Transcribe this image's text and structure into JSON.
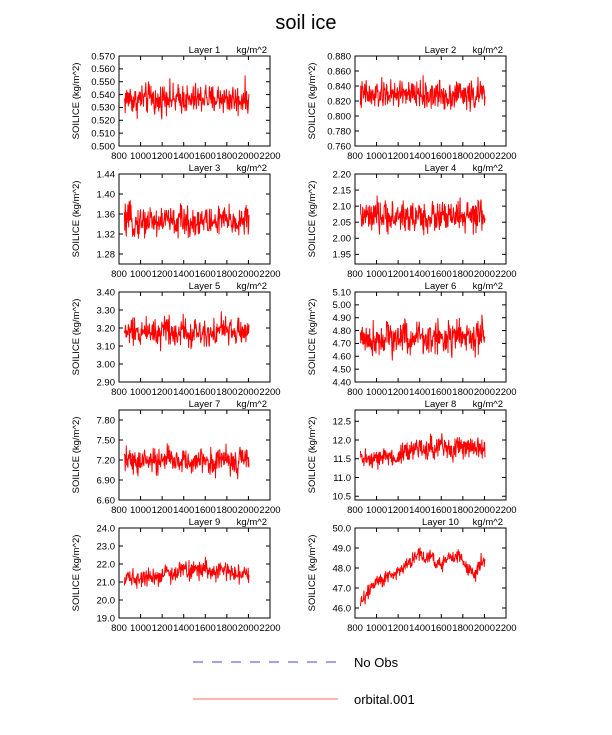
{
  "figure": {
    "title": "soil ice",
    "units_label": "kg/m^2",
    "legend": [
      {
        "label": "No Obs",
        "color": "#6b6bd6",
        "style": "dashed"
      },
      {
        "label": "orbital.001",
        "color": "#ff9c9c",
        "style": "solid"
      }
    ],
    "series_color": "#ff0000"
  },
  "chart_data": [
    {
      "type": "line",
      "title": "Layer 1",
      "ylabel": "SOILICE  (kg/m^2)",
      "units": "kg/m^2",
      "xlim": [
        800,
        2200
      ],
      "xticks": [
        "800",
        "1000",
        "1200",
        "1400",
        "1600",
        "1800",
        "2000",
        "2200"
      ],
      "ylim": [
        0.5,
        0.57
      ],
      "yticks": [
        "0.500",
        "0.510",
        "0.520",
        "0.530",
        "0.540",
        "0.550",
        "0.560",
        "0.570"
      ],
      "series": [
        {
          "x_range": [
            850,
            2005
          ],
          "mean": 0.536,
          "amplitude": 0.011,
          "trend": 0.0,
          "approx_values": [
            0.535,
            0.538,
            0.534,
            0.537,
            0.536,
            0.539,
            0.533,
            0.537,
            0.54,
            0.535,
            0.536,
            0.538,
            0.534,
            0.537,
            0.536,
            0.539,
            0.535,
            0.537,
            0.538,
            0.536,
            0.537,
            0.535,
            0.538,
            0.536
          ]
        }
      ]
    },
    {
      "type": "line",
      "title": "Layer 2",
      "ylabel": "SOILICE  (kg/m^2)",
      "units": "kg/m^2",
      "xlim": [
        800,
        2200
      ],
      "xticks": [
        "800",
        "1000",
        "1200",
        "1400",
        "1600",
        "1800",
        "2000",
        "2200"
      ],
      "ylim": [
        0.76,
        0.88
      ],
      "yticks": [
        "0.760",
        "0.780",
        "0.800",
        "0.820",
        "0.840",
        "0.860",
        "0.880"
      ],
      "series": [
        {
          "x_range": [
            850,
            2005
          ],
          "mean": 0.828,
          "amplitude": 0.018,
          "trend": 0.0,
          "approx_values": [
            0.826,
            0.83,
            0.824,
            0.829,
            0.827,
            0.832,
            0.825,
            0.83,
            0.833,
            0.826,
            0.828,
            0.831,
            0.825,
            0.829,
            0.827,
            0.83,
            0.826,
            0.829,
            0.831,
            0.828,
            0.829,
            0.826,
            0.83,
            0.828
          ]
        }
      ]
    },
    {
      "type": "line",
      "title": "Layer 3",
      "ylabel": "SOILICE  (kg/m^2)",
      "units": "kg/m^2",
      "xlim": [
        800,
        2200
      ],
      "xticks": [
        "800",
        "1000",
        "1200",
        "1400",
        "1600",
        "1800",
        "2000",
        "2200"
      ],
      "ylim": [
        1.26,
        1.44
      ],
      "yticks": [
        "1.28",
        "1.32",
        "1.36",
        "1.40",
        "1.44"
      ],
      "series": [
        {
          "x_range": [
            850,
            2005
          ],
          "mean": 1.345,
          "amplitude": 0.028,
          "trend": 0.0,
          "approx_values": [
            1.343,
            1.348,
            1.34,
            1.346,
            1.344,
            1.35,
            1.341,
            1.347,
            1.351,
            1.342,
            1.345,
            1.349,
            1.341,
            1.346,
            1.344,
            1.348,
            1.342,
            1.346,
            1.349,
            1.345,
            1.346,
            1.343,
            1.348,
            1.345
          ]
        }
      ]
    },
    {
      "type": "line",
      "title": "Layer 4",
      "ylabel": "SOILICE  (kg/m^2)",
      "units": "kg/m^2",
      "xlim": [
        800,
        2200
      ],
      "xticks": [
        "800",
        "1000",
        "1200",
        "1400",
        "1600",
        "1800",
        "2000",
        "2200"
      ],
      "ylim": [
        1.92,
        2.2
      ],
      "yticks": [
        "1.95",
        "2.00",
        "2.05",
        "2.10",
        "2.15",
        "2.20"
      ],
      "series": [
        {
          "x_range": [
            850,
            2005
          ],
          "mean": 2.065,
          "amplitude": 0.045,
          "trend": 0.0,
          "approx_values": [
            2.062,
            2.07,
            2.058,
            2.067,
            2.064,
            2.073,
            2.059,
            2.068,
            2.075,
            2.061,
            2.065,
            2.071,
            2.059,
            2.067,
            2.064,
            2.07,
            2.061,
            2.067,
            2.072,
            2.065,
            2.067,
            2.062,
            2.07,
            2.065
          ]
        }
      ]
    },
    {
      "type": "line",
      "title": "Layer 5",
      "ylabel": "SOILICE  (kg/m^2)",
      "units": "kg/m^2",
      "xlim": [
        800,
        2200
      ],
      "xticks": [
        "800",
        "1000",
        "1200",
        "1400",
        "1600",
        "1800",
        "2000",
        "2200"
      ],
      "ylim": [
        2.9,
        3.4
      ],
      "yticks": [
        "2.90",
        "3.00",
        "3.10",
        "3.20",
        "3.30",
        "3.40"
      ],
      "series": [
        {
          "x_range": [
            850,
            2005
          ],
          "mean": 3.18,
          "amplitude": 0.075,
          "trend": 0.0,
          "approx_values": [
            3.17,
            3.19,
            3.16,
            3.18,
            3.18,
            3.2,
            3.16,
            3.19,
            3.21,
            3.17,
            3.18,
            3.2,
            3.16,
            3.18,
            3.18,
            3.19,
            3.17,
            3.18,
            3.2,
            3.18,
            3.18,
            3.17,
            3.19,
            3.18
          ]
        }
      ]
    },
    {
      "type": "line",
      "title": "Layer 6",
      "ylabel": "SOILICE  (kg/m^2)",
      "units": "kg/m^2",
      "xlim": [
        800,
        2200
      ],
      "xticks": [
        "800",
        "1000",
        "1200",
        "1400",
        "1600",
        "1800",
        "2000",
        "2200"
      ],
      "ylim": [
        4.4,
        5.1
      ],
      "yticks": [
        "4.40",
        "4.50",
        "4.60",
        "4.70",
        "4.80",
        "4.90",
        "5.00",
        "5.10"
      ],
      "series": [
        {
          "x_range": [
            850,
            2005
          ],
          "mean": 4.74,
          "amplitude": 0.12,
          "trend": 0.0,
          "approx_values": [
            4.73,
            4.76,
            4.71,
            4.75,
            4.74,
            4.78,
            4.72,
            4.75,
            4.79,
            4.73,
            4.74,
            4.77,
            4.72,
            4.75,
            4.74,
            4.76,
            4.73,
            4.75,
            4.77,
            4.74,
            4.75,
            4.73,
            4.76,
            4.74
          ]
        }
      ]
    },
    {
      "type": "line",
      "title": "Layer 7",
      "ylabel": "SOILICE  (kg/m^2)",
      "units": "kg/m^2",
      "xlim": [
        800,
        2200
      ],
      "xticks": [
        "800",
        "1000",
        "1200",
        "1400",
        "1600",
        "1800",
        "2000",
        "2200"
      ],
      "ylim": [
        6.6,
        7.95
      ],
      "yticks": [
        "6.60",
        "6.90",
        "7.20",
        "7.50",
        "7.80"
      ],
      "series": [
        {
          "x_range": [
            850,
            2005
          ],
          "mean": 7.18,
          "amplitude": 0.18,
          "trend": 0.0,
          "approx_values": [
            7.16,
            7.22,
            7.12,
            7.19,
            7.17,
            7.25,
            7.13,
            7.2,
            7.26,
            7.15,
            7.18,
            7.23,
            7.13,
            7.19,
            7.17,
            7.22,
            7.15,
            7.19,
            7.24,
            7.18,
            7.19,
            7.16,
            7.22,
            7.18
          ]
        }
      ]
    },
    {
      "type": "line",
      "title": "Layer 8",
      "ylabel": "SOILICE  (kg/m^2)",
      "units": "kg/m^2",
      "xlim": [
        800,
        2200
      ],
      "xticks": [
        "800",
        "1000",
        "1200",
        "1400",
        "1600",
        "1800",
        "2000",
        "2200"
      ],
      "ylim": [
        10.4,
        12.8
      ],
      "yticks": [
        "10.5",
        "11.0",
        "11.5",
        "12.0",
        "12.5"
      ],
      "series": [
        {
          "x_range": [
            850,
            2005
          ],
          "mean": 11.6,
          "amplitude": 0.26,
          "trend": 0.2,
          "approx_values": [
            11.45,
            11.55,
            11.4,
            11.5,
            11.52,
            11.6,
            11.48,
            11.58,
            11.7,
            11.62,
            11.75,
            11.82,
            11.7,
            11.85,
            11.78,
            11.9,
            11.8,
            11.72,
            11.85,
            11.78,
            11.82,
            11.7,
            11.88,
            11.8
          ]
        }
      ]
    },
    {
      "type": "line",
      "title": "Layer 9",
      "ylabel": "SOILICE  (kg/m^2)",
      "units": "kg/m^2",
      "xlim": [
        800,
        2200
      ],
      "xticks": [
        "800",
        "1000",
        "1200",
        "1400",
        "1600",
        "1800",
        "2000",
        "2200"
      ],
      "ylim": [
        19.0,
        24.0
      ],
      "yticks": [
        "19.0",
        "20.0",
        "21.0",
        "22.0",
        "23.0",
        "24.0"
      ],
      "series": [
        {
          "x_range": [
            850,
            2005
          ],
          "mean": 21.4,
          "amplitude": 0.45,
          "trend": 0.4,
          "approx_values": [
            21.2,
            21.4,
            21.1,
            21.3,
            21.3,
            21.5,
            21.2,
            21.4,
            21.6,
            21.4,
            21.6,
            21.8,
            21.5,
            21.7,
            21.6,
            21.8,
            21.6,
            21.5,
            21.7,
            21.6,
            21.6,
            21.4,
            21.7,
            21.6
          ]
        }
      ]
    },
    {
      "type": "line",
      "title": "Layer 10",
      "ylabel": "SOILICE  (kg/m^2)",
      "units": "kg/m^2",
      "xlim": [
        800,
        2200
      ],
      "xticks": [
        "800",
        "1000",
        "1200",
        "1400",
        "1600",
        "1800",
        "2000",
        "2200"
      ],
      "ylim": [
        45.5,
        50.0
      ],
      "yticks": [
        "46.0",
        "47.0",
        "48.0",
        "49.0",
        "50.0"
      ],
      "series": [
        {
          "x_range": [
            850,
            2005
          ],
          "mean": 47.9,
          "amplitude": 0.35,
          "trend": 1.6,
          "approx_values": [
            46.3,
            46.6,
            47.0,
            47.5,
            47.4,
            47.7,
            47.6,
            47.9,
            48.1,
            48.3,
            48.5,
            48.8,
            48.4,
            48.6,
            48.3,
            48.2,
            48.4,
            48.5,
            48.7,
            48.2,
            48.0,
            47.6,
            48.2,
            48.4
          ]
        }
      ]
    }
  ]
}
